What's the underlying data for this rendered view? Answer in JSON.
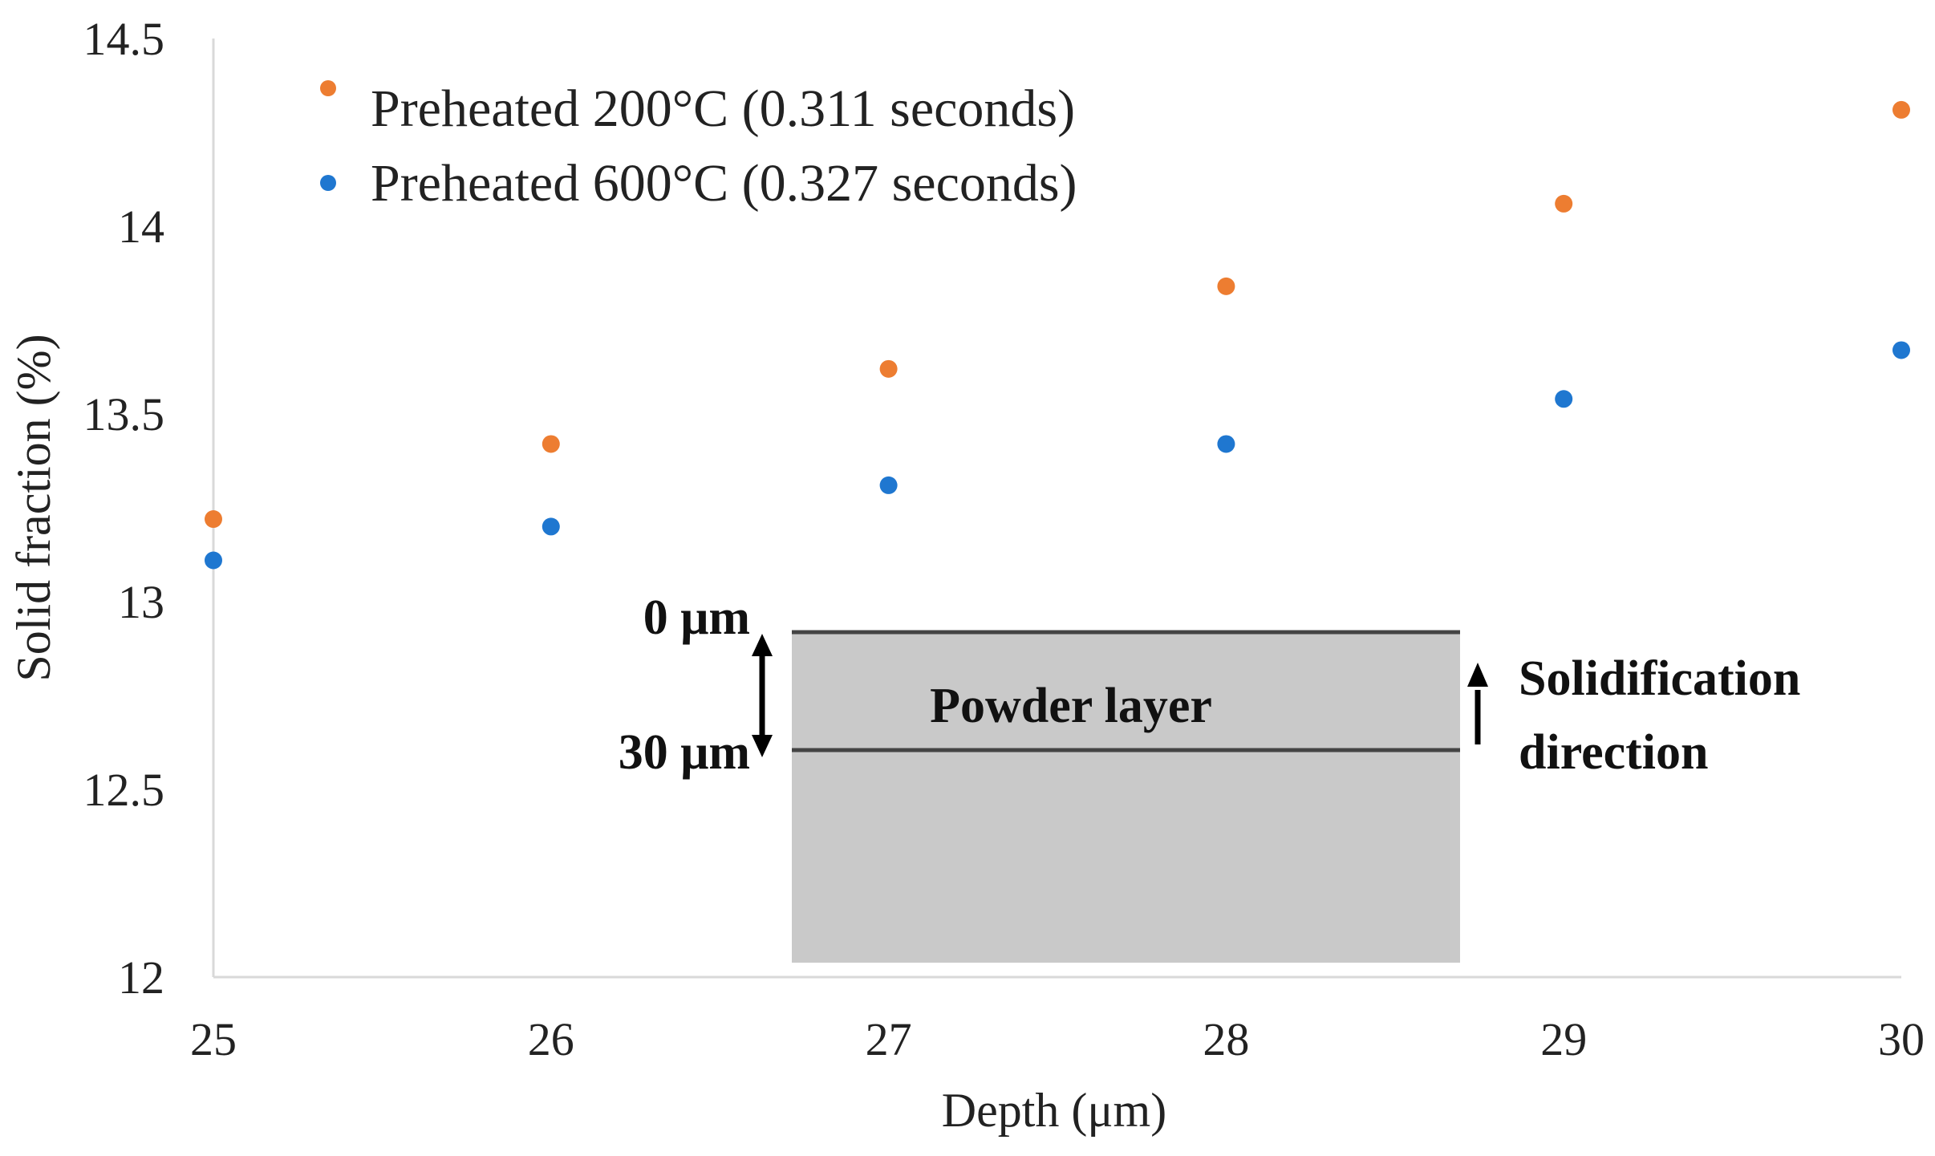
{
  "chart_data": {
    "type": "scatter",
    "title": "",
    "xlabel": "Depth (μm)",
    "ylabel": "Solid fraction (%)",
    "xlim": [
      25,
      30
    ],
    "ylim": [
      12,
      14.5
    ],
    "xticks": [
      "25",
      "26",
      "27",
      "28",
      "29",
      "30"
    ],
    "yticks": [
      "12",
      "12.5",
      "13",
      "13.5",
      "14",
      "14.5"
    ],
    "x": [
      25,
      26,
      27,
      28,
      29,
      30
    ],
    "series": [
      {
        "name": "Preheated 200°C (0.311 seconds)",
        "color": "#ED7D31",
        "values": [
          13.22,
          13.42,
          13.62,
          13.84,
          14.06,
          14.31
        ]
      },
      {
        "name": "Preheated 600°C (0.327 seconds)",
        "color": "#1F77D0",
        "values": [
          13.11,
          13.2,
          13.31,
          13.42,
          13.54,
          13.67
        ]
      }
    ],
    "legend_position": "top-left",
    "grid": false
  },
  "inset": {
    "layer_label": "Powder layer",
    "top_depth_label": "0 μm",
    "bottom_depth_label": "30 μm",
    "direction_label_line1": "Solidification",
    "direction_label_line2": "direction",
    "fill_color": "#C9C9C9",
    "line_color": "#444444"
  },
  "colors": {
    "axis": "#D9D9D9",
    "text": "#222222"
  }
}
